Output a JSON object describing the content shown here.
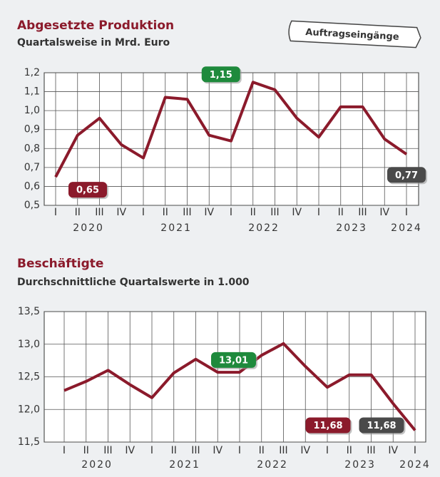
{
  "button": "Auftragseingänge",
  "chart_data": [
    {
      "type": "line",
      "title": "Abgesetzte Produktion",
      "subtitle": "Quartalsweise in Mrd. Euro",
      "categories": [
        "I",
        "II",
        "III",
        "IV",
        "I",
        "II",
        "III",
        "IV",
        "I",
        "II",
        "III",
        "IV",
        "I",
        "II",
        "III",
        "IV",
        "I"
      ],
      "years": [
        "2020",
        "2021",
        "2022",
        "2023",
        "2024"
      ],
      "values": [
        0.65,
        0.87,
        0.96,
        0.82,
        0.75,
        1.07,
        1.06,
        0.87,
        0.84,
        1.15,
        1.11,
        0.96,
        0.86,
        1.02,
        1.02,
        0.85,
        0.77
      ],
      "color": "#8b1a2b",
      "ylim": [
        0.5,
        1.2
      ],
      "yticks": [
        {
          "value": 0.5,
          "label": "0,5"
        },
        {
          "value": 0.6,
          "label": "0,6"
        },
        {
          "value": 0.7,
          "label": "0,7"
        },
        {
          "value": 0.8,
          "label": "0,8"
        },
        {
          "value": 0.9,
          "label": "0,9"
        },
        {
          "value": 1.0,
          "label": "1,0"
        },
        {
          "value": 1.1,
          "label": "1,1"
        },
        {
          "value": 1.2,
          "label": "1,2"
        }
      ],
      "grid": true,
      "annotations": [
        {
          "text": "0,65",
          "point": 0,
          "color": "#8b1a2b"
        },
        {
          "text": "1,15",
          "point": 9,
          "color": "#1e8a3c"
        },
        {
          "text": "0,77",
          "point": 16,
          "color": "#4a4a4a"
        }
      ]
    },
    {
      "type": "line",
      "title": "Beschäftigte",
      "subtitle": "Durchschnittliche Quartalswerte in 1.000",
      "categories": [
        "I",
        "II",
        "III",
        "IV",
        "I",
        "II",
        "III",
        "IV",
        "I",
        "II",
        "III",
        "IV",
        "I",
        "II",
        "III",
        "IV",
        "I"
      ],
      "years": [
        "2020",
        "2021",
        "2022",
        "2023",
        "2024"
      ],
      "values": [
        12.29,
        12.43,
        12.6,
        12.38,
        12.18,
        12.56,
        12.77,
        12.57,
        12.57,
        12.83,
        13.01,
        12.66,
        12.34,
        12.53,
        12.53,
        12.09,
        11.68
      ],
      "color": "#8b1a2b",
      "ylim": [
        11.5,
        13.5
      ],
      "yticks": [
        {
          "value": 11.5,
          "label": "11,5"
        },
        {
          "value": 12.0,
          "label": "12,0"
        },
        {
          "value": 12.5,
          "label": "12,5"
        },
        {
          "value": 13.0,
          "label": "13,0"
        },
        {
          "value": 13.5,
          "label": "13,5"
        }
      ],
      "grid": true,
      "annotations": [
        {
          "text": "13,01",
          "point": 10,
          "color": "#1e8a3c"
        },
        {
          "text": "11,68",
          "point": 16,
          "color": "#8b1a2b"
        },
        {
          "text": "11,68",
          "point": 16,
          "color": "#4a4a4a"
        }
      ]
    }
  ]
}
